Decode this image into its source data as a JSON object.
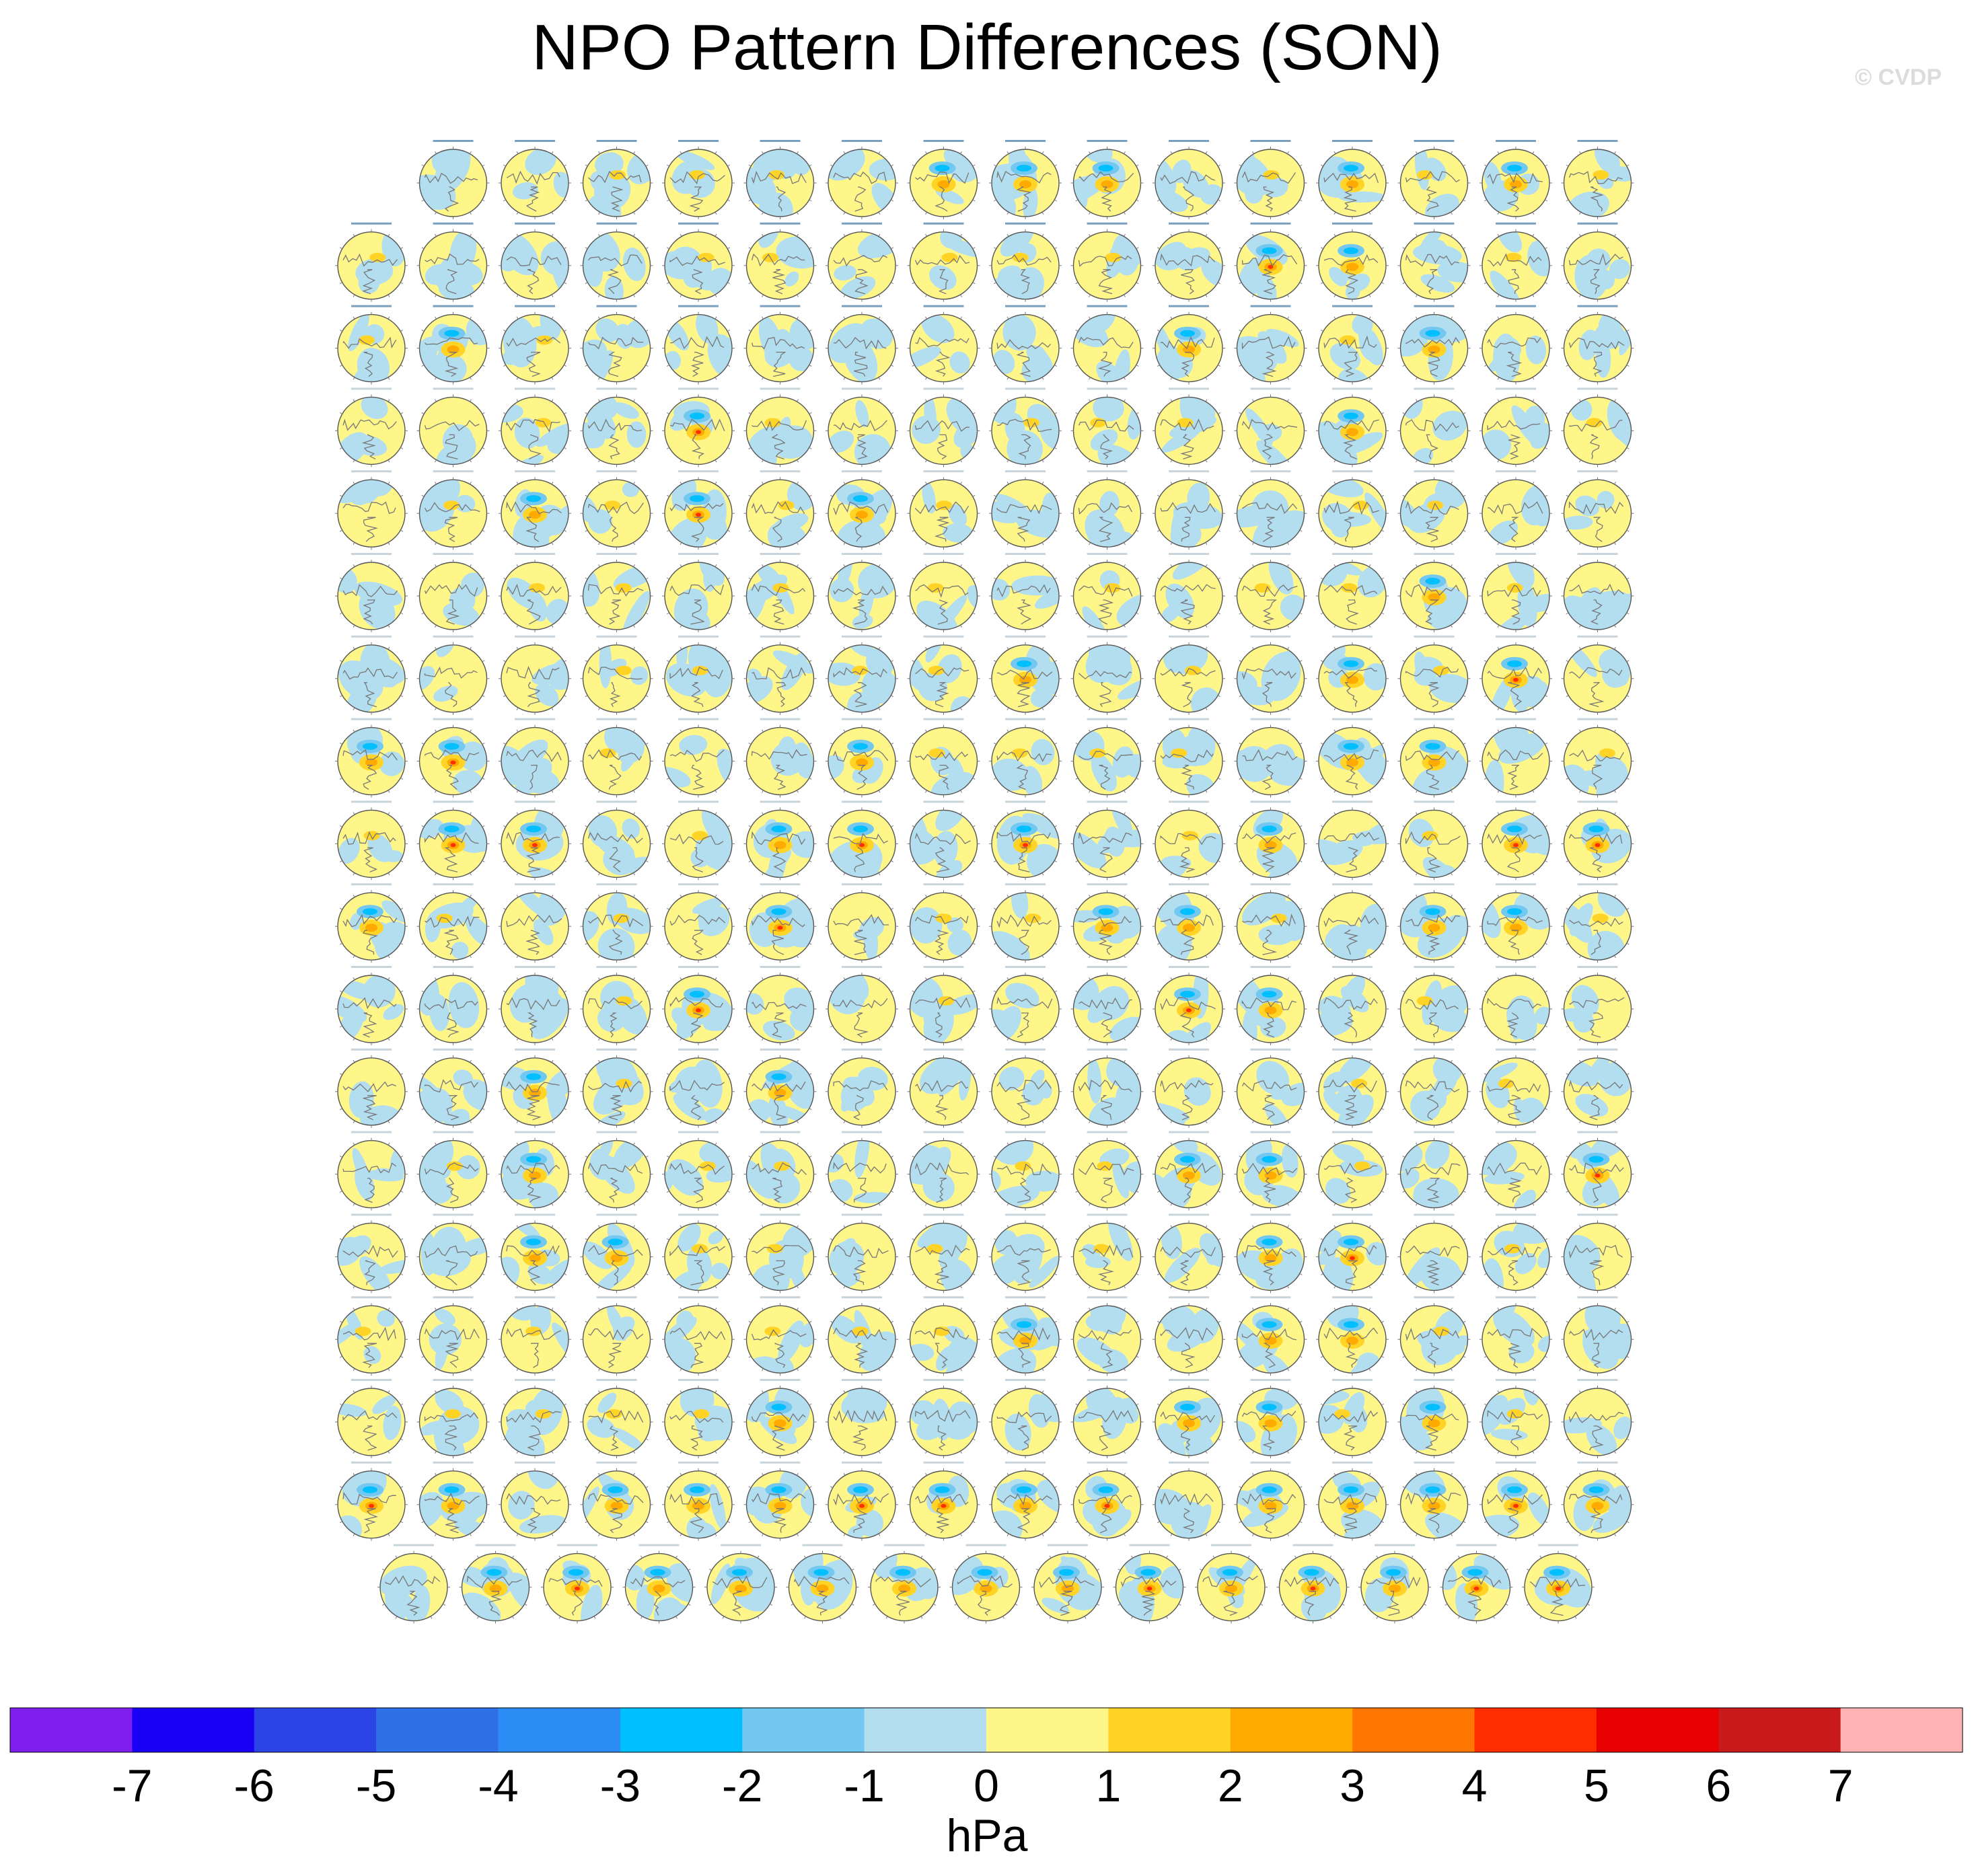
{
  "title": "NPO Pattern Differences (SON)",
  "watermark": "© CVDP",
  "chart_data": {
    "type": "heatmap",
    "title": "NPO Pattern Differences (SON)",
    "description_units": "hPa",
    "panel_grid": {
      "projection": "north polar stereographic",
      "row_counts": [
        15,
        16,
        16,
        16,
        16,
        16,
        16,
        16,
        16,
        16,
        16,
        16,
        16,
        16,
        16,
        16,
        16,
        15
      ],
      "first_row_alignment": "right",
      "last_row_alignment": "center"
    },
    "colorbar": {
      "label": "hPa",
      "tick_labels": [
        "-7",
        "-6",
        "-5",
        "-4",
        "-3",
        "-2",
        "-1",
        "0",
        "1",
        "2",
        "3",
        "4",
        "5",
        "6",
        "7"
      ],
      "colors": [
        "#7e1ff0",
        "#1a00f5",
        "#2a44e6",
        "#3070e6",
        "#2b8cf5",
        "#00bfff",
        "#72c8f0",
        "#b3def0",
        "#fff68a",
        "#ffd426",
        "#ffaa00",
        "#ff7700",
        "#ff2e00",
        "#e60000",
        "#c81a1a",
        "#ffb3b3"
      ]
    }
  }
}
